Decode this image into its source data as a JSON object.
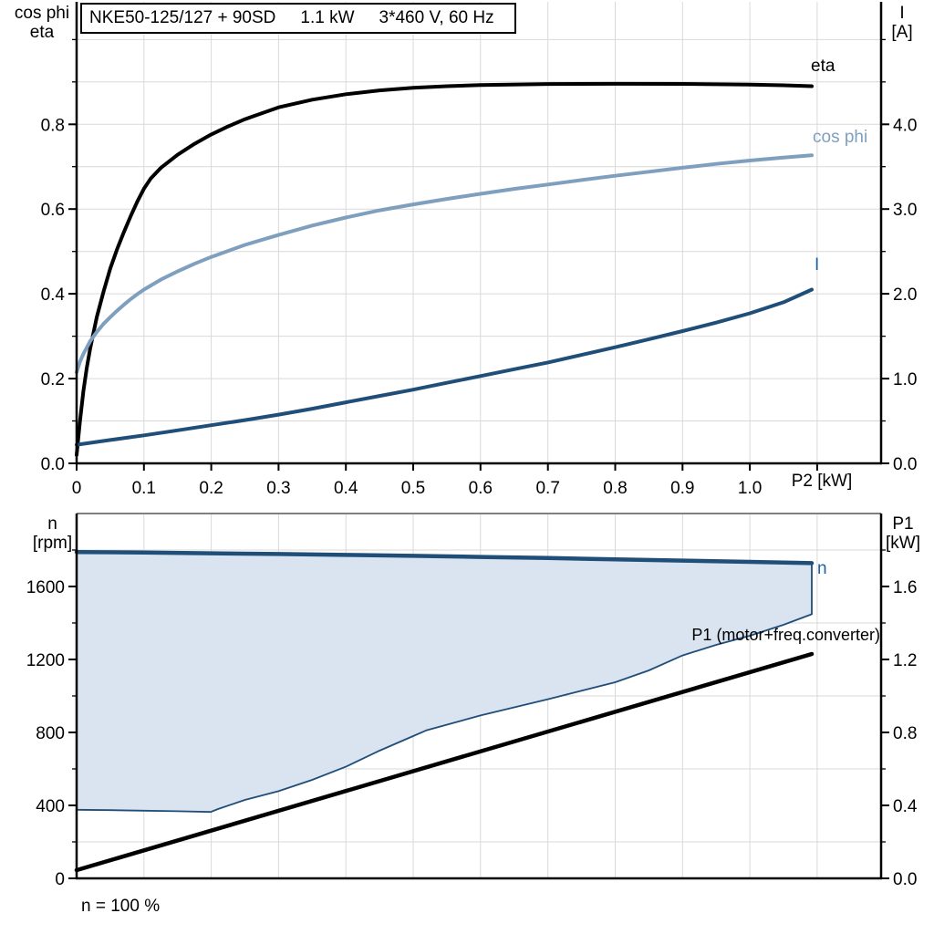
{
  "title": {
    "model": "NKE50-125/127 + 90SD",
    "power": "1.1 kW",
    "supply": "3*460 V, 60 Hz"
  },
  "colors": {
    "grid": "#D9D9D9",
    "axis": "#000000",
    "frame_gray": "#7F7F7F",
    "eta_curve": "#000000",
    "cosphi_curve": "#7F9FBF",
    "current_curve": "#1F4E79",
    "speed_curve": "#1F4E79",
    "p1_curve": "#000000",
    "band_fill": "#DAE3F0",
    "blue_label": "#215FA5"
  },
  "chart_data": [
    {
      "type": "line",
      "name": "efficiency current chart",
      "x_axis": {
        "label": "P2 [kW]",
        "range": [
          0,
          1.195
        ],
        "grid": [
          0.1,
          0.2,
          0.3,
          0.4,
          0.5,
          0.6,
          0.7,
          0.8,
          0.9,
          1.0,
          1.1
        ],
        "ticks": [
          {
            "v": 0,
            "label": "0"
          },
          {
            "v": 0.1,
            "label": "0.1"
          },
          {
            "v": 0.2,
            "label": "0.2"
          },
          {
            "v": 0.3,
            "label": "0.3"
          },
          {
            "v": 0.4,
            "label": "0.4"
          },
          {
            "v": 0.5,
            "label": "0.5"
          },
          {
            "v": 0.6,
            "label": "0.6"
          },
          {
            "v": 0.7,
            "label": "0.7"
          },
          {
            "v": 0.8,
            "label": "0.8"
          },
          {
            "v": 0.9,
            "label": "0.9"
          },
          {
            "v": 1.0,
            "label": "1.0"
          },
          {
            "v": 1.1,
            "label": ""
          }
        ]
      },
      "left_axis": {
        "title_lines": [
          "cos phi",
          "eta"
        ],
        "range": [
          0,
          1.089
        ],
        "grid": [
          0.1,
          0.2,
          0.3,
          0.4,
          0.5,
          0.6,
          0.7,
          0.8,
          0.9,
          1.0
        ],
        "major": [
          {
            "v": 0.0,
            "label": "0.0"
          },
          {
            "v": 0.2,
            "label": "0.2"
          },
          {
            "v": 0.4,
            "label": "0.4"
          },
          {
            "v": 0.6,
            "label": "0.6"
          },
          {
            "v": 0.8,
            "label": "0.8"
          }
        ],
        "minor": [
          0.1,
          0.3,
          0.5,
          0.7,
          0.9,
          1.0
        ]
      },
      "right_axis": {
        "title_lines": [
          "I",
          "[A]"
        ],
        "range": [
          0,
          5.445
        ],
        "major": [
          {
            "v": 0.0,
            "label": "0.0"
          },
          {
            "v": 1.0,
            "label": "1.0"
          },
          {
            "v": 2.0,
            "label": "2.0"
          },
          {
            "v": 3.0,
            "label": "3.0"
          },
          {
            "v": 4.0,
            "label": "4.0"
          }
        ],
        "minor": [
          0.5,
          1.5,
          2.5,
          3.5,
          4.5,
          5.0
        ]
      },
      "series": [
        {
          "name": "eta",
          "axis": "left",
          "color": "#000000",
          "width": 4,
          "points": [
            [
              0,
              0.02
            ],
            [
              0.005,
              0.1
            ],
            [
              0.01,
              0.17
            ],
            [
              0.015,
              0.225
            ],
            [
              0.02,
              0.27
            ],
            [
              0.03,
              0.345
            ],
            [
              0.04,
              0.405
            ],
            [
              0.05,
              0.46
            ],
            [
              0.06,
              0.505
            ],
            [
              0.07,
              0.545
            ],
            [
              0.08,
              0.582
            ],
            [
              0.09,
              0.617
            ],
            [
              0.1,
              0.648
            ],
            [
              0.11,
              0.672
            ],
            [
              0.125,
              0.697
            ],
            [
              0.15,
              0.728
            ],
            [
              0.175,
              0.754
            ],
            [
              0.2,
              0.776
            ],
            [
              0.225,
              0.795
            ],
            [
              0.25,
              0.812
            ],
            [
              0.3,
              0.84
            ],
            [
              0.35,
              0.858
            ],
            [
              0.4,
              0.871
            ],
            [
              0.45,
              0.88
            ],
            [
              0.5,
              0.886
            ],
            [
              0.55,
              0.89
            ],
            [
              0.6,
              0.8925
            ],
            [
              0.7,
              0.895
            ],
            [
              0.8,
              0.8955
            ],
            [
              0.9,
              0.8952
            ],
            [
              1.0,
              0.8935
            ],
            [
              1.05,
              0.892
            ],
            [
              1.092,
              0.89
            ]
          ]
        },
        {
          "name": "cos phi",
          "axis": "left",
          "color": "#7F9FBF",
          "width": 4,
          "points": [
            [
              0,
              0.215
            ],
            [
              0.005,
              0.24
            ],
            [
              0.01,
              0.258
            ],
            [
              0.02,
              0.288
            ],
            [
              0.03,
              0.31
            ],
            [
              0.04,
              0.329
            ],
            [
              0.05,
              0.345
            ],
            [
              0.06,
              0.36
            ],
            [
              0.07,
              0.374
            ],
            [
              0.08,
              0.387
            ],
            [
              0.09,
              0.399
            ],
            [
              0.1,
              0.41
            ],
            [
              0.125,
              0.4335
            ],
            [
              0.15,
              0.453
            ],
            [
              0.175,
              0.471
            ],
            [
              0.2,
              0.487
            ],
            [
              0.25,
              0.5155
            ],
            [
              0.3,
              0.539
            ],
            [
              0.35,
              0.561
            ],
            [
              0.4,
              0.58
            ],
            [
              0.45,
              0.597
            ],
            [
              0.5,
              0.611
            ],
            [
              0.55,
              0.624
            ],
            [
              0.6,
              0.636
            ],
            [
              0.65,
              0.6475
            ],
            [
              0.7,
              0.658
            ],
            [
              0.75,
              0.6685
            ],
            [
              0.8,
              0.6785
            ],
            [
              0.85,
              0.688
            ],
            [
              0.9,
              0.6975
            ],
            [
              0.95,
              0.7065
            ],
            [
              1.0,
              0.7145
            ],
            [
              1.05,
              0.7215
            ],
            [
              1.092,
              0.727
            ]
          ]
        },
        {
          "name": "I",
          "axis": "right",
          "color": "#1F4E79",
          "width": 4,
          "points": [
            [
              0,
              0.22
            ],
            [
              0.05,
              0.275
            ],
            [
              0.1,
              0.33
            ],
            [
              0.15,
              0.39
            ],
            [
              0.2,
              0.45
            ],
            [
              0.25,
              0.51
            ],
            [
              0.3,
              0.575
            ],
            [
              0.35,
              0.645
            ],
            [
              0.4,
              0.72
            ],
            [
              0.45,
              0.795
            ],
            [
              0.5,
              0.87
            ],
            [
              0.55,
              0.95
            ],
            [
              0.6,
              1.03
            ],
            [
              0.65,
              1.11
            ],
            [
              0.7,
              1.19
            ],
            [
              0.75,
              1.28
            ],
            [
              0.8,
              1.37
            ],
            [
              0.85,
              1.465
            ],
            [
              0.9,
              1.56
            ],
            [
              0.95,
              1.66
            ],
            [
              1.0,
              1.77
            ],
            [
              1.05,
              1.9
            ],
            [
              1.092,
              2.05
            ]
          ]
        }
      ]
    },
    {
      "type": "line",
      "name": "speed power chart",
      "frame_top_color": "#7F7F7F",
      "footnote": "n = 100 %",
      "x_axis": {
        "label": "",
        "range": [
          0,
          1.195
        ],
        "grid": [
          0.1,
          0.2,
          0.3,
          0.4,
          0.5,
          0.6,
          0.7,
          0.8,
          0.9,
          1.0,
          1.1
        ],
        "ticks": []
      },
      "left_axis": {
        "title_lines": [
          "n",
          "[rpm]"
        ],
        "range": [
          0,
          2000
        ],
        "grid": [
          200,
          600,
          1000,
          1400,
          1800
        ],
        "major": [
          {
            "v": 0,
            "label": "0"
          },
          {
            "v": 400,
            "label": "400"
          },
          {
            "v": 800,
            "label": "800"
          },
          {
            "v": 1200,
            "label": "1200"
          },
          {
            "v": 1600,
            "label": "1600"
          }
        ],
        "minor": [
          200,
          600,
          1000,
          1400,
          1800
        ]
      },
      "right_axis": {
        "title_lines": [
          "P1",
          "[kW]"
        ],
        "range": [
          0,
          2.0
        ],
        "major": [
          {
            "v": 0.0,
            "label": "0.0"
          },
          {
            "v": 0.4,
            "label": "0.4"
          },
          {
            "v": 0.8,
            "label": "0.8"
          },
          {
            "v": 1.2,
            "label": "1.2"
          },
          {
            "v": 1.6,
            "label": "1.6"
          }
        ],
        "minor": [
          0.2,
          0.6,
          1.0,
          1.4,
          1.8
        ]
      },
      "band": {
        "fill": "#DAE3F0",
        "lower": {
          "color": "#1F4E79",
          "width": 1.8,
          "points": [
            [
              0,
              376
            ],
            [
              0.05,
              374
            ],
            [
              0.1,
              371
            ],
            [
              0.15,
              368
            ],
            [
              0.199,
              364
            ],
            [
              0.21,
              380
            ],
            [
              0.25,
              430
            ],
            [
              0.3,
              478
            ],
            [
              0.35,
              540
            ],
            [
              0.4,
              612
            ],
            [
              0.45,
              700
            ],
            [
              0.5,
              780
            ],
            [
              0.52,
              812
            ],
            [
              0.6,
              893
            ],
            [
              0.7,
              982
            ],
            [
              0.8,
              1075
            ],
            [
              0.85,
              1140
            ],
            [
              0.9,
              1222
            ],
            [
              0.95,
              1280
            ],
            [
              1.0,
              1330
            ],
            [
              1.05,
              1390
            ],
            [
              1.092,
              1448
            ]
          ]
        }
      },
      "series": [
        {
          "name": "n",
          "axis": "left",
          "color": "#1F4E79",
          "width": 4.5,
          "points": [
            [
              0,
              1789
            ],
            [
              0.1,
              1786
            ],
            [
              0.2,
              1782
            ],
            [
              0.3,
              1778
            ],
            [
              0.4,
              1773
            ],
            [
              0.5,
              1768
            ],
            [
              0.6,
              1762
            ],
            [
              0.7,
              1756
            ],
            [
              0.8,
              1749
            ],
            [
              0.9,
              1742
            ],
            [
              1.0,
              1735
            ],
            [
              1.092,
              1728
            ]
          ]
        },
        {
          "name": "P1 (motor+freq.converter)",
          "axis": "right",
          "color": "#000000",
          "width": 4.5,
          "points": [
            [
              0,
              0.045
            ],
            [
              1.092,
              1.23
            ]
          ]
        }
      ]
    }
  ]
}
